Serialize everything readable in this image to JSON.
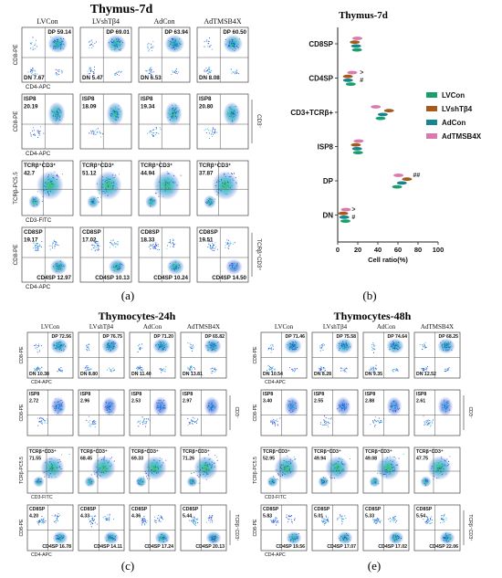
{
  "panel_a": {
    "title": "Thymus-7d",
    "label": "(a)",
    "columns": [
      "LVCon",
      "LVshTβ4",
      "AdCon",
      "AdTMSB4X"
    ],
    "rows": [
      {
        "ylabel": "CD8-PE",
        "xlabel": "CD4-APC",
        "side_label": "",
        "cells": [
          {
            "gates": [
              {
                "text": "DP 59.14",
                "pos": "tr"
              },
              {
                "text": "DN 7.67",
                "pos": "bl"
              }
            ]
          },
          {
            "gates": [
              {
                "text": "DP 69.01",
                "pos": "tr"
              },
              {
                "text": "DN 5.47",
                "pos": "bl"
              }
            ]
          },
          {
            "gates": [
              {
                "text": "DP 63.94",
                "pos": "tr"
              },
              {
                "text": "DN 6.53",
                "pos": "bl"
              }
            ]
          },
          {
            "gates": [
              {
                "text": "DP 60.50",
                "pos": "tr"
              },
              {
                "text": "DN 8.08",
                "pos": "bl"
              }
            ]
          }
        ]
      },
      {
        "ylabel": "CD8-PE",
        "xlabel": "CD4-APC",
        "side_label": "CD3⁻",
        "cells": [
          {
            "gates": [
              {
                "text": "ISP8",
                "pos": "tl"
              },
              {
                "text": "20.19",
                "pos": "tl2"
              }
            ]
          },
          {
            "gates": [
              {
                "text": "ISP8",
                "pos": "tl"
              },
              {
                "text": "18.09",
                "pos": "tl2"
              }
            ]
          },
          {
            "gates": [
              {
                "text": "ISP8",
                "pos": "tl"
              },
              {
                "text": "19.34",
                "pos": "tl2"
              }
            ]
          },
          {
            "gates": [
              {
                "text": "ISP8",
                "pos": "tl"
              },
              {
                "text": "20.80",
                "pos": "tl2"
              }
            ]
          }
        ]
      },
      {
        "ylabel": "TCRβ-PC5.5",
        "xlabel": "CD3-FITC",
        "side_label": "",
        "cells": [
          {
            "gates": [
              {
                "text": "TCRβ⁺CD3⁺",
                "pos": "tl"
              },
              {
                "text": "42.7",
                "pos": "tl2"
              }
            ]
          },
          {
            "gates": [
              {
                "text": "TCRβ⁺CD3⁺",
                "pos": "tl"
              },
              {
                "text": "51.12",
                "pos": "tl2"
              }
            ]
          },
          {
            "gates": [
              {
                "text": "TCRβ⁺CD3⁺",
                "pos": "tl"
              },
              {
                "text": "44.94",
                "pos": "tl2"
              }
            ]
          },
          {
            "gates": [
              {
                "text": "TCRβ⁺CD3⁺",
                "pos": "tl"
              },
              {
                "text": "37.87",
                "pos": "tl2"
              }
            ]
          }
        ]
      },
      {
        "ylabel": "CD8-PE",
        "xlabel": "CD4-APC",
        "side_label": "TCRβ⁺CD3⁺",
        "cells": [
          {
            "gates": [
              {
                "text": "CD8SP",
                "pos": "tl"
              },
              {
                "text": "19.17",
                "pos": "tl2"
              },
              {
                "text": "CD4SP 12.97",
                "pos": "br"
              }
            ]
          },
          {
            "gates": [
              {
                "text": "CD8SP",
                "pos": "tl"
              },
              {
                "text": "17.02",
                "pos": "tl2"
              },
              {
                "text": "CD4SP 10.13",
                "pos": "br"
              }
            ]
          },
          {
            "gates": [
              {
                "text": "CD8SP",
                "pos": "tl"
              },
              {
                "text": "18.33",
                "pos": "tl2"
              },
              {
                "text": "CD4SP 10.24",
                "pos": "br"
              }
            ]
          },
          {
            "gates": [
              {
                "text": "CD8SP",
                "pos": "tl"
              },
              {
                "text": "19.51",
                "pos": "tl2"
              },
              {
                "text": "CD4SP 14.50",
                "pos": "br"
              }
            ]
          }
        ]
      }
    ]
  },
  "panel_b": {
    "label": "(b)",
    "chart_data": {
      "type": "scatter",
      "title": "Thymus-7d",
      "xlabel": "Cell ratio(%)",
      "ylabel": "",
      "xlim": [
        0,
        100
      ],
      "xticks": [
        0,
        20,
        40,
        60,
        80,
        100
      ],
      "categories": [
        "CD8SP",
        "CD4SP",
        "CD3+TCRβ+",
        "ISP8",
        "DP",
        "DN"
      ],
      "series": [
        {
          "name": "AdTMSB4X",
          "color": "#d97aae",
          "values": [
            19.5,
            14.5,
            37.9,
            20.8,
            60.5,
            8.1
          ]
        },
        {
          "name": "LVshTβ4",
          "color": "#a35a1a",
          "values": [
            17.0,
            10.1,
            51.1,
            18.1,
            69.0,
            5.5
          ]
        },
        {
          "name": "AdCon",
          "color": "#16858f",
          "values": [
            18.3,
            10.2,
            44.9,
            19.3,
            63.9,
            6.5
          ]
        },
        {
          "name": "LVCon",
          "color": "#18a06a",
          "values": [
            19.2,
            13.0,
            42.7,
            20.2,
            59.1,
            7.7
          ]
        }
      ],
      "legend_order": [
        "LVCon",
        "LVshTβ4",
        "AdCon",
        "AdTMSB4X"
      ],
      "legend_position": "right",
      "annotations": [
        {
          "category": "CD4SP",
          "text": ">"
        },
        {
          "category": "CD4SP",
          "text": "#"
        },
        {
          "category": "DP",
          "text": "##"
        },
        {
          "category": "DN",
          "text": ">"
        },
        {
          "category": "DN",
          "text": "#"
        }
      ]
    }
  },
  "panel_c": {
    "title": "Thymocytes-24h",
    "label": "(c)",
    "columns": [
      "LVCon",
      "LVshTβ4",
      "AdCon",
      "AdTMSB4X"
    ],
    "rows": [
      {
        "ylabel": "CD8-PE",
        "xlabel": "CD4-APC",
        "side_label": "",
        "cells": [
          {
            "gates": [
              {
                "text": "DP 72.56",
                "pos": "tr"
              },
              {
                "text": "DN 10.38",
                "pos": "bl"
              }
            ]
          },
          {
            "gates": [
              {
                "text": "DP 76.75",
                "pos": "tr"
              },
              {
                "text": "DN 8.80",
                "pos": "bl"
              }
            ]
          },
          {
            "gates": [
              {
                "text": "DP 71.20",
                "pos": "tr"
              },
              {
                "text": "DN 11.40",
                "pos": "bl"
              }
            ]
          },
          {
            "gates": [
              {
                "text": "DP 65.82",
                "pos": "tr"
              },
              {
                "text": "DN 13.81",
                "pos": "bl"
              }
            ]
          }
        ]
      },
      {
        "ylabel": "CD8-PE",
        "xlabel": "",
        "side_label": "CD3⁻",
        "cells": [
          {
            "gates": [
              {
                "text": "ISP8",
                "pos": "tl"
              },
              {
                "text": "2.72",
                "pos": "tl2"
              }
            ]
          },
          {
            "gates": [
              {
                "text": "ISP8",
                "pos": "tl"
              },
              {
                "text": "2.96",
                "pos": "tl2"
              }
            ]
          },
          {
            "gates": [
              {
                "text": "ISP8",
                "pos": "tl"
              },
              {
                "text": "2.53",
                "pos": "tl2"
              }
            ]
          },
          {
            "gates": [
              {
                "text": "ISP8",
                "pos": "tl"
              },
              {
                "text": "2.97",
                "pos": "tl2"
              }
            ]
          }
        ]
      },
      {
        "ylabel": "TCRβ-PC5.5",
        "xlabel": "CD3-FITC",
        "side_label": "",
        "cells": [
          {
            "gates": [
              {
                "text": "TCRβ⁺CD3⁺",
                "pos": "tl"
              },
              {
                "text": "71.55",
                "pos": "tl2"
              }
            ]
          },
          {
            "gates": [
              {
                "text": "TCRβ⁺CD3⁺",
                "pos": "tl"
              },
              {
                "text": "68.45",
                "pos": "tl2"
              }
            ]
          },
          {
            "gates": [
              {
                "text": "TCRβ⁺CD3⁺",
                "pos": "tl"
              },
              {
                "text": "69.33",
                "pos": "tl2"
              }
            ]
          },
          {
            "gates": [
              {
                "text": "TCRβ⁺CD3⁺",
                "pos": "tl"
              },
              {
                "text": "71.26",
                "pos": "tl2"
              }
            ]
          }
        ]
      },
      {
        "ylabel": "CD8-PE",
        "xlabel": "CD4-APC",
        "side_label": "TCRβ⁺CD3⁺",
        "cells": [
          {
            "gates": [
              {
                "text": "CD8SP",
                "pos": "tl"
              },
              {
                "text": "4.20",
                "pos": "tl2"
              },
              {
                "text": "CD4SP 16.78",
                "pos": "br"
              }
            ]
          },
          {
            "gates": [
              {
                "text": "CD8SP",
                "pos": "tl"
              },
              {
                "text": "4.33",
                "pos": "tl2"
              },
              {
                "text": "CD4SP 14.11",
                "pos": "br"
              }
            ]
          },
          {
            "gates": [
              {
                "text": "CD8SP",
                "pos": "tl"
              },
              {
                "text": "4.36",
                "pos": "tl2"
              },
              {
                "text": "CD4SP 17.24",
                "pos": "br"
              }
            ]
          },
          {
            "gates": [
              {
                "text": "CD8SP",
                "pos": "tl"
              },
              {
                "text": "5.44",
                "pos": "tl2"
              },
              {
                "text": "CD4SP 20.13",
                "pos": "br"
              }
            ]
          }
        ]
      }
    ]
  },
  "panel_e": {
    "title": "Thymocytes-48h",
    "label": "(e)",
    "columns": [
      "LVCon",
      "LVshTβ4",
      "AdCon",
      "AdTMSB4X"
    ],
    "rows": [
      {
        "ylabel": "CD8-PE",
        "xlabel": "CD4-APC",
        "side_label": "",
        "cells": [
          {
            "gates": [
              {
                "text": "DP 71.46",
                "pos": "tr"
              },
              {
                "text": "DN 10.54",
                "pos": "bl"
              }
            ]
          },
          {
            "gates": [
              {
                "text": "DP 75.58",
                "pos": "tr"
              },
              {
                "text": "DN 8.28",
                "pos": "bl"
              }
            ]
          },
          {
            "gates": [
              {
                "text": "DP 74.64",
                "pos": "tr"
              },
              {
                "text": "DN 9.35",
                "pos": "bl"
              }
            ]
          },
          {
            "gates": [
              {
                "text": "DP 68.25",
                "pos": "tr"
              },
              {
                "text": "DN 12.52",
                "pos": "bl"
              }
            ]
          }
        ]
      },
      {
        "ylabel": "CD8-PE",
        "xlabel": "",
        "side_label": "CD3⁻",
        "cells": [
          {
            "gates": [
              {
                "text": "ISP8",
                "pos": "tl"
              },
              {
                "text": "3.40",
                "pos": "tl2"
              }
            ]
          },
          {
            "gates": [
              {
                "text": "ISP8",
                "pos": "tl"
              },
              {
                "text": "2.55",
                "pos": "tl2"
              }
            ]
          },
          {
            "gates": [
              {
                "text": "ISP8",
                "pos": "tl"
              },
              {
                "text": "2.88",
                "pos": "tl2"
              }
            ]
          },
          {
            "gates": [
              {
                "text": "ISP8",
                "pos": "tl"
              },
              {
                "text": "2.61",
                "pos": "tl2"
              }
            ]
          }
        ]
      },
      {
        "ylabel": "TCRβ-PC5.5",
        "xlabel": "CD3-FITC",
        "side_label": "",
        "cells": [
          {
            "gates": [
              {
                "text": "TCRβ⁺CD3⁺",
                "pos": "tl"
              },
              {
                "text": "52.95",
                "pos": "tl2"
              }
            ]
          },
          {
            "gates": [
              {
                "text": "TCRβ⁺CD3⁺",
                "pos": "tl"
              },
              {
                "text": "49.94",
                "pos": "tl2"
              }
            ]
          },
          {
            "gates": [
              {
                "text": "TCRβ⁺CD3⁺",
                "pos": "tl"
              },
              {
                "text": "49.08",
                "pos": "tl2"
              }
            ]
          },
          {
            "gates": [
              {
                "text": "TCRβ⁺CD3⁺",
                "pos": "tl"
              },
              {
                "text": "47.75",
                "pos": "tl2"
              }
            ]
          }
        ]
      },
      {
        "ylabel": "CD8-PE",
        "xlabel": "CD4-APC",
        "side_label": "TCRβ⁺CD3⁺",
        "cells": [
          {
            "gates": [
              {
                "text": "CD8SP",
                "pos": "tl"
              },
              {
                "text": "5.83",
                "pos": "tl2"
              },
              {
                "text": "CD4SP 19.56",
                "pos": "br"
              }
            ]
          },
          {
            "gates": [
              {
                "text": "CD8SP",
                "pos": "tl"
              },
              {
                "text": "5.01",
                "pos": "tl2"
              },
              {
                "text": "CD4SP 17.07",
                "pos": "br"
              }
            ]
          },
          {
            "gates": [
              {
                "text": "CD8SP",
                "pos": "tl"
              },
              {
                "text": "5.33",
                "pos": "tl2"
              },
              {
                "text": "CD4SP 17.02",
                "pos": "br"
              }
            ]
          },
          {
            "gates": [
              {
                "text": "CD8SP",
                "pos": "tl"
              },
              {
                "text": "5.54",
                "pos": "tl2"
              },
              {
                "text": "CD4SP 22.06",
                "pos": "br"
              }
            ]
          }
        ]
      }
    ]
  }
}
